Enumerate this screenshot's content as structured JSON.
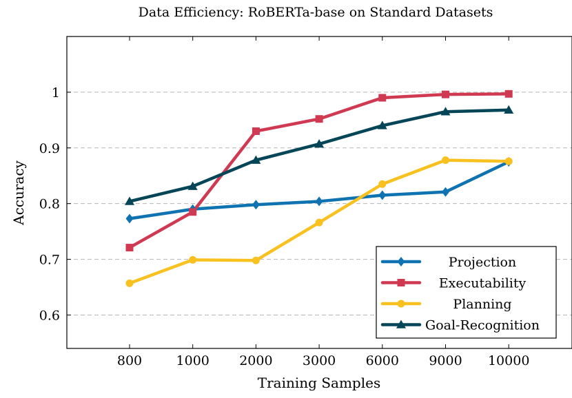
{
  "chart_data": {
    "type": "line",
    "title": "Data Efficiency: RoBERTa-base on Standard Datasets",
    "xlabel": "Training Samples",
    "ylabel": "Accuracy",
    "categories": [
      "800",
      "1000",
      "2000",
      "3000",
      "6000",
      "9000",
      "10000"
    ],
    "ylim": [
      0.54,
      1.1
    ],
    "yticks": [
      0.6,
      0.7,
      0.8,
      0.9,
      1.0
    ],
    "ytick_labels": [
      "0.6",
      "0.7",
      "0.8",
      "0.9",
      "1"
    ],
    "grid": "horizontal-dashed",
    "legend_position": "bottom-right",
    "series": [
      {
        "name": "Projection",
        "color": "#0e73b0",
        "marker": "diamond",
        "values": [
          0.773,
          0.79,
          0.798,
          0.804,
          0.815,
          0.821,
          0.875
        ]
      },
      {
        "name": "Executability",
        "color": "#cf3a52",
        "marker": "square",
        "values": [
          0.721,
          0.785,
          0.93,
          0.952,
          0.99,
          0.996,
          0.997
        ]
      },
      {
        "name": "Planning",
        "color": "#f8c120",
        "marker": "circle",
        "values": [
          0.657,
          0.699,
          0.698,
          0.766,
          0.835,
          0.878,
          0.876
        ]
      },
      {
        "name": "Goal-Recognition",
        "color": "#044557",
        "marker": "triangle",
        "values": [
          0.804,
          0.831,
          0.878,
          0.907,
          0.94,
          0.965,
          0.968
        ]
      }
    ]
  }
}
